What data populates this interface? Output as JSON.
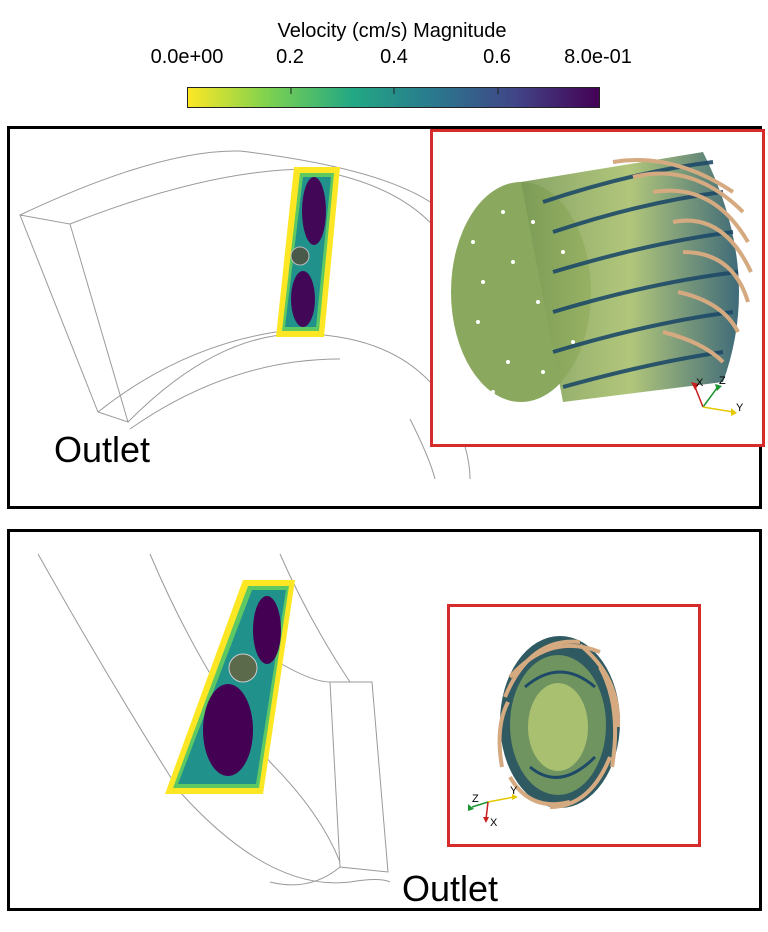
{
  "colorbar": {
    "title": "Velocity (cm/s) Magnitude",
    "ticks": [
      {
        "label": "0.0e+00",
        "value": 0.0
      },
      {
        "label": "0.2",
        "value": 0.2
      },
      {
        "label": "0.4",
        "value": 0.4
      },
      {
        "label": "0.6",
        "value": 0.6
      },
      {
        "label": "8.0e-01",
        "value": 0.8
      }
    ],
    "range": [
      0.0,
      0.8
    ],
    "colormap": [
      "#fde725",
      "#7ad151",
      "#22a884",
      "#2a788e",
      "#414487",
      "#440154"
    ]
  },
  "panels": [
    {
      "outlet_label": "Outlet",
      "axes": [
        {
          "label": "X",
          "color": "#c81e1e"
        },
        {
          "label": "Z",
          "color": "#1e9632"
        },
        {
          "label": "Y",
          "color": "#e6c800"
        }
      ]
    },
    {
      "outlet_label": "Outlet",
      "axes": [
        {
          "label": "Z",
          "color": "#1e9632"
        },
        {
          "label": "Y",
          "color": "#e6c800"
        },
        {
          "label": "X",
          "color": "#c81e1e"
        }
      ]
    }
  ],
  "colors": {
    "panel_border": "#000000",
    "inset_border": "#d62b2b",
    "outline": "#9a9a9a",
    "streamline_tan": "#d6aa80"
  }
}
